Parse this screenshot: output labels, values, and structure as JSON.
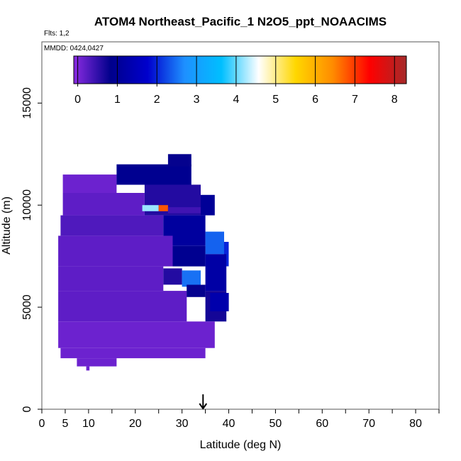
{
  "chart_data": {
    "type": "heatmap",
    "title": "ATOM4 Northeast_Pacific_1 N2O5_ppt_NOAACIMS",
    "flights_label": "Flts: 1,2",
    "date_label": "MMDD: 0424,0427",
    "xlabel": "Latitude (deg N)",
    "ylabel": "Altitude (m)",
    "xlim": [
      0,
      85
    ],
    "ylim": [
      0,
      18000
    ],
    "x_ticks": [
      0,
      5,
      10,
      20,
      30,
      40,
      50,
      60,
      70,
      80
    ],
    "x_minor_ticks": [
      15,
      25,
      35,
      45,
      55,
      65,
      75,
      85
    ],
    "y_ticks": [
      0,
      5000,
      10000,
      15000
    ],
    "grid": false,
    "marker_arrow_latitude": 34.5,
    "colorbar": {
      "min": -0.1,
      "max": 8.3,
      "ticks": [
        0,
        1,
        2,
        3,
        4,
        5,
        6,
        7,
        8
      ],
      "colors": [
        "#8a2be2",
        "#00008b",
        "#0000cd",
        "#1e90ff",
        "#00bfff",
        "#ffffff",
        "#ffd700",
        "#ff8c00",
        "#ff0000",
        "#a52a2a"
      ]
    },
    "cells": [
      {
        "lat": [
          4.5,
          16
        ],
        "alt": [
          10600,
          11500
        ],
        "value": 0.1
      },
      {
        "lat": [
          16,
          32
        ],
        "alt": [
          11000,
          12000
        ],
        "value": 0.9
      },
      {
        "lat": [
          27,
          32
        ],
        "alt": [
          11900,
          12500
        ],
        "value": 0.8
      },
      {
        "lat": [
          4.5,
          22
        ],
        "alt": [
          9500,
          10600
        ],
        "value": 0.2
      },
      {
        "lat": [
          22,
          34
        ],
        "alt": [
          9500,
          11000
        ],
        "value": 0.6
      },
      {
        "lat": [
          21.5,
          25
        ],
        "alt": [
          9700,
          10000
        ],
        "value": 4.2
      },
      {
        "lat": [
          25,
          27
        ],
        "alt": [
          9700,
          10000
        ],
        "value": 6.8
      },
      {
        "lat": [
          27,
          34
        ],
        "alt": [
          9600,
          9900
        ],
        "value": 0.4
      },
      {
        "lat": [
          34,
          37
        ],
        "alt": [
          9500,
          10500
        ],
        "value": 1.0
      },
      {
        "lat": [
          4,
          26
        ],
        "alt": [
          8500,
          9500
        ],
        "value": 0.3
      },
      {
        "lat": [
          26,
          35
        ],
        "alt": [
          8000,
          9500
        ],
        "value": 1.1
      },
      {
        "lat": [
          35,
          39
        ],
        "alt": [
          7600,
          8700
        ],
        "value": 2.4
      },
      {
        "lat": [
          39,
          40
        ],
        "alt": [
          7000,
          8200
        ],
        "value": 2.0
      },
      {
        "lat": [
          3.5,
          28
        ],
        "alt": [
          7000,
          8500
        ],
        "value": 0.2
      },
      {
        "lat": [
          28,
          35
        ],
        "alt": [
          7000,
          8000
        ],
        "value": 0.9
      },
      {
        "lat": [
          35,
          39.5
        ],
        "alt": [
          5800,
          7600
        ],
        "value": 1.2
      },
      {
        "lat": [
          3.5,
          26
        ],
        "alt": [
          5800,
          7000
        ],
        "value": 0.2
      },
      {
        "lat": [
          26,
          30
        ],
        "alt": [
          6100,
          6900
        ],
        "value": 0.6
      },
      {
        "lat": [
          30,
          34
        ],
        "alt": [
          6000,
          6800
        ],
        "value": 2.5
      },
      {
        "lat": [
          3.5,
          31
        ],
        "alt": [
          4300,
          5800
        ],
        "value": 0.2
      },
      {
        "lat": [
          31,
          35
        ],
        "alt": [
          5500,
          6100
        ],
        "value": 0.8
      },
      {
        "lat": [
          35,
          39.5
        ],
        "alt": [
          4300,
          5800
        ],
        "value": 0.7
      },
      {
        "lat": [
          36,
          40
        ],
        "alt": [
          4800,
          5700
        ],
        "value": 1.3
      },
      {
        "lat": [
          3.5,
          37
        ],
        "alt": [
          3000,
          4300
        ],
        "value": 0.1
      },
      {
        "lat": [
          4,
          35
        ],
        "alt": [
          2500,
          3000
        ],
        "value": 0.1
      },
      {
        "lat": [
          7.5,
          16
        ],
        "alt": [
          2100,
          2500
        ],
        "value": 0.1
      },
      {
        "lat": [
          9.5,
          10.2
        ],
        "alt": [
          1900,
          2100
        ],
        "value": 0.1
      }
    ]
  }
}
